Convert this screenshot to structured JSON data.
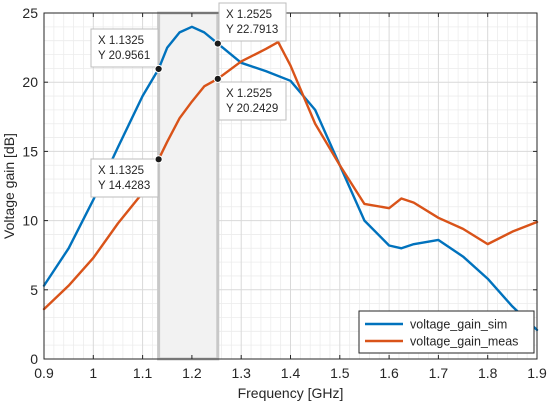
{
  "chart_data": {
    "type": "line",
    "xlabel": "Frequency [GHz]",
    "ylabel": "Voltage gain [dB]",
    "xlim": [
      0.9,
      1.9
    ],
    "ylim": [
      0,
      25
    ],
    "xticks": [
      0.9,
      1.0,
      1.1,
      1.2,
      1.3,
      1.4,
      1.5,
      1.6,
      1.7,
      1.8,
      1.9
    ],
    "xtick_labels": [
      "0.9",
      "1",
      "1.1",
      "1.2",
      "1.3",
      "1.4",
      "1.5",
      "1.6",
      "1.7",
      "1.8",
      "1.9"
    ],
    "yticks": [
      0,
      5,
      10,
      15,
      20,
      25
    ],
    "ytick_labels": [
      "0",
      "5",
      "10",
      "15",
      "20",
      "25"
    ],
    "grid": true,
    "minor_grid": true,
    "legend_position": "bottom-right",
    "shaded_region": {
      "x": [
        1.1325,
        1.2525
      ],
      "fill": "#f2f2f2",
      "edge": "#c8c8c8"
    },
    "series": [
      {
        "name": "voltage_gain_sim",
        "color": "#0072BD",
        "x": [
          0.9,
          0.95,
          1.0,
          1.05,
          1.1,
          1.1325,
          1.15,
          1.175,
          1.2,
          1.225,
          1.2525,
          1.3,
          1.35,
          1.4,
          1.45,
          1.5,
          1.55,
          1.6,
          1.625,
          1.65,
          1.7,
          1.75,
          1.8,
          1.85,
          1.9
        ],
        "values": [
          5.3,
          8.0,
          11.5,
          15.3,
          19.0,
          20.9561,
          22.5,
          23.6,
          24.0,
          23.6,
          22.7913,
          21.4,
          20.8,
          20.1,
          18.0,
          14.0,
          10.0,
          8.2,
          8.0,
          8.3,
          8.6,
          7.4,
          5.8,
          3.8,
          2.1
        ]
      },
      {
        "name": "voltage_gain_meas",
        "color": "#D95319",
        "x": [
          0.9,
          0.95,
          1.0,
          1.05,
          1.1,
          1.1325,
          1.15,
          1.175,
          1.2,
          1.225,
          1.2525,
          1.3,
          1.35,
          1.375,
          1.4,
          1.45,
          1.5,
          1.55,
          1.6,
          1.625,
          1.65,
          1.7,
          1.75,
          1.8,
          1.85,
          1.9
        ],
        "values": [
          3.6,
          5.3,
          7.3,
          9.8,
          12.0,
          14.4283,
          15.7,
          17.4,
          18.6,
          19.7,
          20.2429,
          21.5,
          22.4,
          22.9,
          21.2,
          17.0,
          14.0,
          11.2,
          10.9,
          11.6,
          11.3,
          10.2,
          9.4,
          8.3,
          9.2,
          9.9
        ]
      }
    ],
    "datatips": [
      {
        "id": "tip-sim-1",
        "x_label": "X 1.1325",
        "y_label": "Y 20.9561",
        "x": 1.1325,
        "y": 20.9561
      },
      {
        "id": "tip-sim-2",
        "x_label": "X 1.2525",
        "y_label": "Y 22.7913",
        "x": 1.2525,
        "y": 22.7913
      },
      {
        "id": "tip-meas-2",
        "x_label": "X 1.2525",
        "y_label": "Y 20.2429",
        "x": 1.2525,
        "y": 20.2429
      },
      {
        "id": "tip-meas-1",
        "x_label": "X 1.1325",
        "y_label": "Y 14.4283",
        "x": 1.1325,
        "y": 14.4283
      }
    ]
  }
}
